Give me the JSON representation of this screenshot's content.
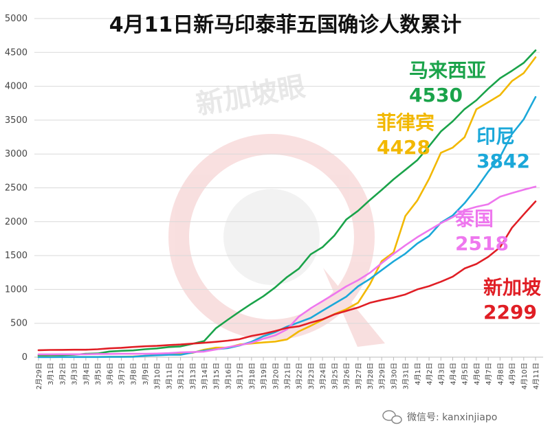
{
  "chart_data": {
    "type": "line",
    "title": "4月11日新马印泰菲五国确诊人数累计",
    "xlabel": "",
    "ylabel": "",
    "ylim": [
      0,
      5000
    ],
    "yticks": [
      0,
      500,
      1000,
      1500,
      2000,
      2500,
      3000,
      3500,
      4000,
      4500,
      5000
    ],
    "grid": true,
    "categories": [
      "2月29日",
      "3月1日",
      "3月2日",
      "3月3日",
      "3月4日",
      "3月5日",
      "3月6日",
      "3月7日",
      "3月8日",
      "3月9日",
      "3月10日",
      "3月11日",
      "3月12日",
      "3月13日",
      "3月14日",
      "3月15日",
      "3月16日",
      "3月17日",
      "3月18日",
      "3月19日",
      "3月20日",
      "3月21日",
      "3月22日",
      "3月23日",
      "3月24日",
      "3月25日",
      "3月26日",
      "3月27日",
      "3月28日",
      "3月29日",
      "3月30日",
      "3月31日",
      "4月1日",
      "4月2日",
      "4月3日",
      "4月4日",
      "4月5日",
      "4月6日",
      "4月7日",
      "4月8日",
      "4月9日",
      "4月10日",
      "4月11日"
    ],
    "series": [
      {
        "name": "马来西亚",
        "color": "#1aa34a",
        "label_value": "4530",
        "values": [
          25,
          29,
          29,
          36,
          50,
          55,
          83,
          93,
          99,
          117,
          129,
          149,
          158,
          197,
          238,
          428,
          553,
          673,
          790,
          900,
          1030,
          1183,
          1306,
          1518,
          1624,
          1796,
          2031,
          2161,
          2320,
          2470,
          2626,
          2766,
          2908,
          3116,
          3333,
          3483,
          3662,
          3793,
          3963,
          4119,
          4228,
          4346,
          4530
        ]
      },
      {
        "name": "菲律宾",
        "color": "#f2b800",
        "label_value": "4428",
        "values": [
          3,
          3,
          3,
          3,
          3,
          3,
          5,
          6,
          10,
          20,
          33,
          49,
          52,
          64,
          111,
          140,
          142,
          187,
          202,
          217,
          230,
          262,
          380,
          462,
          552,
          636,
          707,
          803,
          1075,
          1418,
          1546,
          2084,
          2311,
          2633,
          3018,
          3094,
          3246,
          3660,
          3764,
          3870,
          4076,
          4195,
          4428
        ]
      },
      {
        "name": "印尼",
        "color": "#1ba8d9",
        "label_value": "3842",
        "values": [
          0,
          0,
          2,
          2,
          2,
          2,
          4,
          4,
          6,
          19,
          27,
          34,
          34,
          69,
          96,
          117,
          134,
          172,
          227,
          309,
          369,
          450,
          514,
          579,
          686,
          790,
          893,
          1046,
          1155,
          1285,
          1414,
          1528,
          1677,
          1790,
          1986,
          2092,
          2273,
          2491,
          2738,
          2956,
          3293,
          3512,
          3842
        ]
      },
      {
        "name": "泰国",
        "color": "#ee77ee",
        "label_value": "2518",
        "values": [
          42,
          42,
          43,
          43,
          43,
          47,
          48,
          50,
          50,
          50,
          53,
          59,
          70,
          75,
          82,
          114,
          147,
          177,
          212,
          272,
          322,
          411,
          599,
          721,
          827,
          934,
          1045,
          1136,
          1245,
          1388,
          1524,
          1651,
          1771,
          1875,
          1978,
          2067,
          2169,
          2220,
          2258,
          2369,
          2423,
          2473,
          2518
        ]
      },
      {
        "name": "新加坡",
        "color": "#e01e25",
        "label_value": "2299",
        "values": [
          102,
          106,
          108,
          110,
          110,
          117,
          130,
          138,
          150,
          160,
          166,
          178,
          187,
          200,
          212,
          226,
          243,
          266,
          313,
          345,
          385,
          432,
          455,
          509,
          558,
          631,
          683,
          732,
          802,
          844,
          879,
          926,
          1000,
          1049,
          1114,
          1189,
          1309,
          1375,
          1481,
          1623,
          1910,
          2108,
          2299
        ]
      }
    ]
  },
  "watermark": "新加坡眼",
  "footer": {
    "icon": "wechat-icon",
    "text": "微信号: kanxinjiapo"
  }
}
